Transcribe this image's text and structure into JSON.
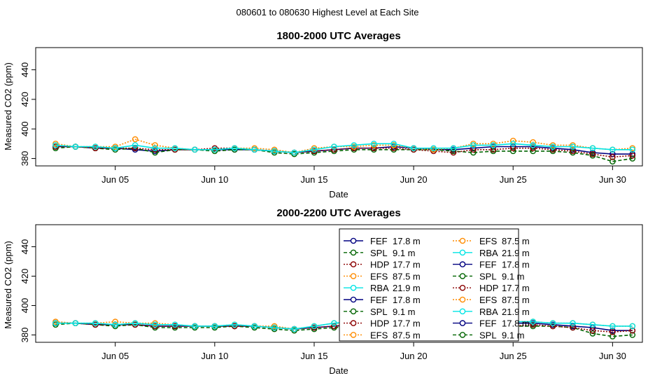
{
  "page": {
    "title": "080601  to  080630 Highest Level at Each Site"
  },
  "chart_data": [
    {
      "type": "line",
      "title": "1800-2000 UTC Averages",
      "xlabel": "Date",
      "ylabel": "Measured CO2 (ppm)",
      "x_ticks": [
        "Jun 05",
        "Jun 10",
        "Jun 15",
        "Jun 20",
        "Jun 25",
        "Jun 30"
      ],
      "x_tick_days": [
        5,
        10,
        15,
        20,
        25,
        30
      ],
      "y_ticks": [
        380,
        400,
        420,
        440
      ],
      "xlim": [
        1,
        31.5
      ],
      "ylim": [
        375,
        455
      ],
      "x": [
        2,
        3,
        4,
        5,
        6,
        7,
        8,
        9,
        10,
        11,
        12,
        13,
        14,
        15,
        16,
        17,
        18,
        19,
        20,
        21,
        22,
        23,
        24,
        25,
        26,
        27,
        28,
        29,
        30,
        31
      ],
      "series": [
        {
          "name": "FEF 17.8 m",
          "color": "#000080",
          "lty": "solid",
          "values": [
            388,
            388,
            387,
            387,
            386,
            385,
            386,
            386,
            386,
            386,
            386,
            385,
            384,
            385,
            386,
            387,
            387,
            388,
            387,
            386,
            386,
            387,
            388,
            388,
            388,
            387,
            386,
            384,
            383,
            383
          ]
        },
        {
          "name": "SPL 9.1 m",
          "color": "#006400",
          "lty": "dashed",
          "values": [
            387,
            388,
            387,
            386,
            387,
            384,
            386,
            386,
            385,
            386,
            386,
            384,
            383,
            384,
            385,
            386,
            386,
            386,
            386,
            386,
            385,
            384,
            385,
            385,
            385,
            385,
            384,
            382,
            378,
            380
          ]
        },
        {
          "name": "HDP 17.7 m",
          "color": "#8b0000",
          "lty": "dotted",
          "values": [
            388,
            388,
            387,
            387,
            387,
            386,
            386,
            386,
            387,
            387,
            386,
            385,
            384,
            385,
            386,
            387,
            387,
            387,
            386,
            385,
            384,
            386,
            386,
            387,
            387,
            386,
            385,
            383,
            381,
            382
          ]
        },
        {
          "name": "EFS 87.5 m",
          "color": "#ff8c00",
          "lty": "dotted",
          "values": [
            390,
            388,
            388,
            388,
            393,
            389,
            387,
            386,
            386,
            387,
            387,
            386,
            384,
            387,
            388,
            388,
            389,
            389,
            387,
            386,
            387,
            390,
            390,
            392,
            391,
            389,
            389,
            387,
            386,
            387
          ]
        },
        {
          "name": "RBA 21.9 m",
          "color": "#00e5e5",
          "lty": "solid",
          "values": [
            389,
            388,
            388,
            387,
            389,
            387,
            387,
            386,
            386,
            387,
            386,
            385,
            384,
            386,
            388,
            389,
            390,
            390,
            387,
            387,
            387,
            389,
            389,
            390,
            389,
            388,
            388,
            387,
            386,
            386
          ]
        }
      ]
    },
    {
      "type": "line",
      "title": "2000-2200 UTC Averages",
      "xlabel": "Date",
      "ylabel": "Measured CO2 (ppm)",
      "x_ticks": [
        "Jun 05",
        "Jun 10",
        "Jun 15",
        "Jun 20",
        "Jun 25",
        "Jun 30"
      ],
      "x_tick_days": [
        5,
        10,
        15,
        20,
        25,
        30
      ],
      "y_ticks": [
        380,
        400,
        420,
        440
      ],
      "xlim": [
        1,
        31.5
      ],
      "ylim": [
        375,
        455
      ],
      "x": [
        2,
        3,
        4,
        5,
        6,
        7,
        8,
        9,
        10,
        11,
        12,
        13,
        14,
        15,
        16,
        17,
        18,
        19,
        20,
        21,
        22,
        23,
        24,
        25,
        26,
        27,
        28,
        29,
        30,
        31
      ],
      "series": [
        {
          "name": "FEF 17.8 m",
          "color": "#000080",
          "lty": "solid",
          "values": [
            388,
            388,
            387,
            387,
            387,
            386,
            386,
            386,
            386,
            386,
            386,
            385,
            384,
            385,
            386,
            387,
            387,
            388,
            387,
            386,
            385,
            386,
            419,
            388,
            388,
            387,
            386,
            385,
            383,
            383
          ]
        },
        {
          "name": "SPL 9.1 m",
          "color": "#006400",
          "lty": "dashed",
          "values": [
            387,
            388,
            387,
            386,
            387,
            385,
            385,
            385,
            385,
            386,
            385,
            384,
            383,
            384,
            385,
            386,
            386,
            386,
            385,
            385,
            384,
            385,
            385,
            386,
            386,
            386,
            385,
            381,
            379,
            380
          ]
        },
        {
          "name": "HDP 17.7 m",
          "color": "#8b0000",
          "lty": "dotted",
          "values": [
            388,
            388,
            387,
            387,
            387,
            386,
            386,
            386,
            386,
            386,
            386,
            385,
            384,
            385,
            386,
            387,
            387,
            387,
            386,
            385,
            384,
            385,
            386,
            386,
            387,
            386,
            385,
            383,
            382,
            383
          ]
        },
        {
          "name": "EFS 87.5 m",
          "color": "#ff8c00",
          "lty": "dotted",
          "values": [
            389,
            388,
            388,
            389,
            388,
            388,
            387,
            386,
            386,
            387,
            386,
            386,
            384,
            386,
            388,
            388,
            388,
            389,
            388,
            386,
            386,
            387,
            387,
            389,
            389,
            388,
            388,
            387,
            386,
            386
          ]
        },
        {
          "name": "RBA 21.9 m",
          "color": "#00e5e5",
          "lty": "solid",
          "values": [
            388,
            388,
            388,
            387,
            388,
            387,
            387,
            386,
            386,
            387,
            386,
            385,
            384,
            386,
            388,
            389,
            389,
            389,
            387,
            386,
            386,
            388,
            389,
            389,
            389,
            388,
            388,
            387,
            386,
            386
          ]
        }
      ],
      "legend": {
        "placement": "top-right",
        "entries": [
          {
            "label": "FEF",
            "height": "17.8 m",
            "color": "#000080",
            "lty": "solid"
          },
          {
            "label": "SPL",
            "height": "9.1 m",
            "color": "#006400",
            "lty": "dashed"
          },
          {
            "label": "HDP",
            "height": "17.7 m",
            "color": "#8b0000",
            "lty": "dotted"
          },
          {
            "label": "EFS",
            "height": "87.5 m",
            "color": "#ff8c00",
            "lty": "dotted"
          },
          {
            "label": "RBA",
            "height": "21.9 m",
            "color": "#00e5e5",
            "lty": "solid"
          },
          {
            "label": "FEF",
            "height": "17.8 m",
            "color": "#000080",
            "lty": "solid"
          },
          {
            "label": "SPL",
            "height": "9.1 m",
            "color": "#006400",
            "lty": "dashed"
          },
          {
            "label": "HDP",
            "height": "17.7 m",
            "color": "#8b0000",
            "lty": "dotted"
          },
          {
            "label": "EFS",
            "height": "87.5 m",
            "color": "#ff8c00",
            "lty": "dotted"
          },
          {
            "label": "EFS",
            "height": "87.5 m",
            "color": "#ff8c00",
            "lty": "dotted"
          },
          {
            "label": "RBA",
            "height": "21.9 m",
            "color": "#00e5e5",
            "lty": "solid"
          },
          {
            "label": "FEF",
            "height": "17.8 m",
            "color": "#000080",
            "lty": "solid"
          },
          {
            "label": "SPL",
            "height": "9.1 m",
            "color": "#006400",
            "lty": "dashed"
          },
          {
            "label": "HDP",
            "height": "17.7 m",
            "color": "#8b0000",
            "lty": "dotted"
          },
          {
            "label": "EFS",
            "height": "87.5 m",
            "color": "#ff8c00",
            "lty": "dotted"
          },
          {
            "label": "RBA",
            "height": "21.9 m",
            "color": "#00e5e5",
            "lty": "solid"
          },
          {
            "label": "FEF",
            "height": "17.8 m",
            "color": "#000080",
            "lty": "solid"
          },
          {
            "label": "SPL",
            "height": "9.1 m",
            "color": "#006400",
            "lty": "dashed"
          }
        ]
      }
    }
  ]
}
